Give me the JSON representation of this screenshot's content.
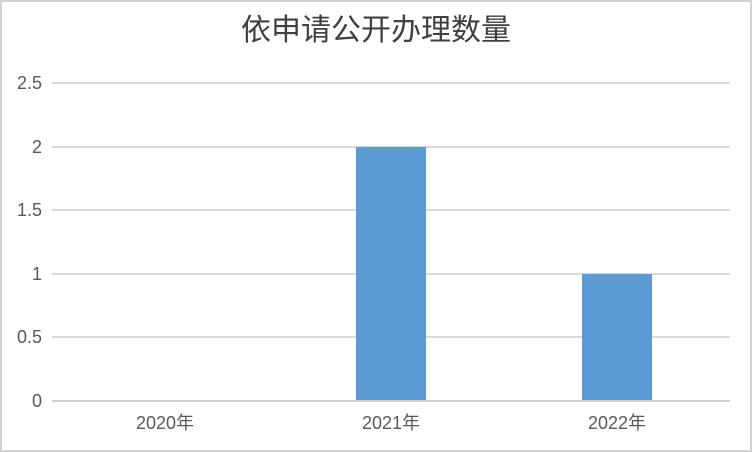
{
  "window": {
    "background": "#FFFFFF",
    "border_color": "#D3D3D3"
  },
  "chart_data": {
    "type": "bar",
    "title": "依申请公开办理数量",
    "categories": [
      "2020年",
      "2021年",
      "2022年"
    ],
    "values": [
      0,
      2,
      1
    ],
    "xlabel": "",
    "ylabel": "",
    "ylim": [
      0,
      2.5
    ],
    "yticks": [
      0,
      0.5,
      1,
      1.5,
      2,
      2.5
    ],
    "grid": true,
    "legend": "none",
    "colors": {
      "bar": "#5B9BD5",
      "gridline": "#D9D9D9",
      "axis_line": "#CFCFCF",
      "tick_label": "#595959",
      "title": "#404040"
    }
  }
}
